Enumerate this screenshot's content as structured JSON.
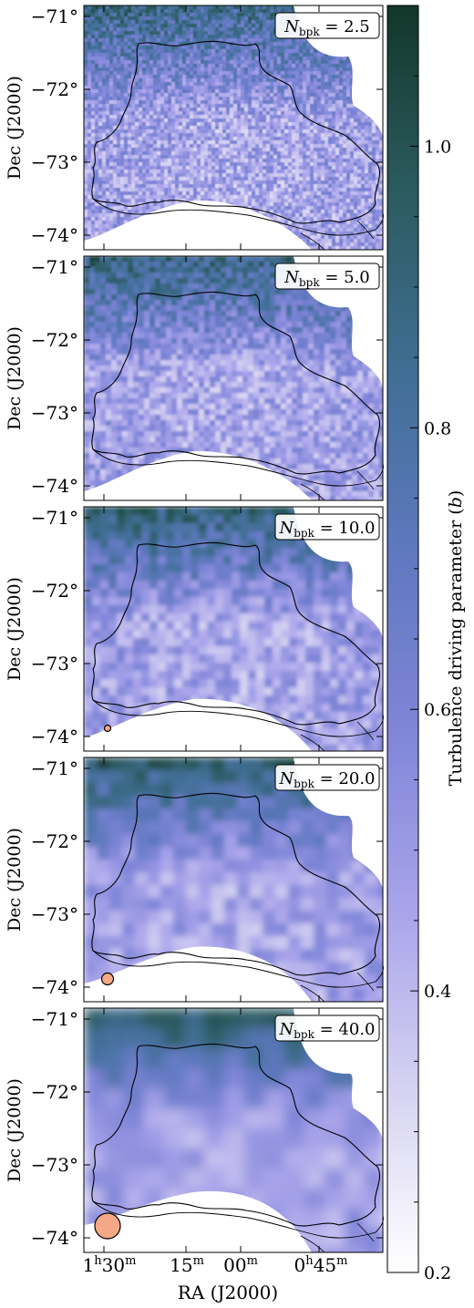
{
  "chart_data": {
    "type": "heatmap",
    "panels": [
      {
        "label_prefix": "N",
        "label_sub": "bpk",
        "label_eq": "= 2.5",
        "beam": false,
        "beam_size": 0
      },
      {
        "label_prefix": "N",
        "label_sub": "bpk",
        "label_eq": "= 5.0",
        "beam": false,
        "beam_size": 0
      },
      {
        "label_prefix": "N",
        "label_sub": "bpk",
        "label_eq": "= 10.0",
        "beam": true,
        "beam_size": 1
      },
      {
        "label_prefix": "N",
        "label_sub": "bpk",
        "label_eq": "= 20.0",
        "beam": true,
        "beam_size": 2
      },
      {
        "label_prefix": "N",
        "label_sub": "bpk",
        "label_eq": "= 40.0",
        "beam": true,
        "beam_size": 4
      }
    ],
    "y_axis": {
      "label": "Dec (J2000)",
      "ticks": [
        "−71°",
        "−72°",
        "−73°",
        "−74°"
      ],
      "values": [
        -71,
        -72,
        -73,
        -74
      ]
    },
    "x_axis": {
      "label": "RA (J2000)",
      "ticks": [
        {
          "h": "1",
          "h_sup": "h",
          "m": "30",
          "m_sup": "m"
        },
        {
          "h": "",
          "h_sup": "",
          "m": "15",
          "m_sup": "m"
        },
        {
          "h": "",
          "h_sup": "",
          "m": "00",
          "m_sup": "m"
        },
        {
          "h": "0",
          "h_sup": "h",
          "m": "45",
          "m_sup": "m"
        }
      ]
    },
    "colorbar": {
      "label": "Turbulence driving parameter (b)",
      "min": 0.2,
      "max": 1.1,
      "ticks": [
        "0.2",
        "0.4",
        "0.6",
        "0.8",
        "1.0"
      ],
      "tick_values": [
        0.2,
        0.4,
        0.6,
        0.8,
        1.0
      ],
      "colors": [
        "#ffffff",
        "#d6d3f2",
        "#a9a4ea",
        "#7f85d8",
        "#5e78be",
        "#3f6e93",
        "#2b5a5e",
        "#12372a"
      ]
    },
    "beam_color": "#f5a886",
    "grid": false
  }
}
